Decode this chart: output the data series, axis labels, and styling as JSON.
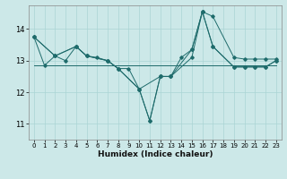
{
  "title": "",
  "xlabel": "Humidex (Indice chaleur)",
  "ylabel": "",
  "bg_color": "#cce8e8",
  "line_color": "#1e6b6b",
  "grid_color": "#aad4d4",
  "xlim": [
    -0.5,
    23.5
  ],
  "ylim": [
    10.5,
    14.75
  ],
  "yticks": [
    11,
    12,
    13,
    14
  ],
  "xticks": [
    0,
    1,
    2,
    3,
    4,
    5,
    6,
    7,
    8,
    9,
    10,
    11,
    12,
    13,
    14,
    15,
    16,
    17,
    18,
    19,
    20,
    21,
    22,
    23
  ],
  "series": [
    {
      "x": [
        0,
        23
      ],
      "y": [
        12.85,
        12.85
      ],
      "marker": false
    },
    {
      "x": [
        0,
        1,
        2,
        3,
        4,
        5,
        6,
        7,
        8,
        9,
        10,
        11,
        12,
        13,
        14,
        15,
        16,
        17,
        19,
        20,
        21,
        22,
        23
      ],
      "y": [
        13.75,
        12.85,
        13.15,
        13.0,
        13.45,
        13.15,
        13.1,
        13.0,
        12.75,
        12.75,
        12.1,
        11.1,
        12.5,
        12.5,
        13.1,
        13.35,
        14.55,
        13.45,
        12.8,
        12.8,
        12.8,
        12.8,
        13.0
      ],
      "marker": true
    },
    {
      "x": [
        0,
        2,
        4,
        5,
        7,
        8,
        10,
        11,
        12,
        13,
        15,
        16,
        17,
        19,
        20,
        21,
        22,
        23
      ],
      "y": [
        13.75,
        13.15,
        13.45,
        13.15,
        13.0,
        12.75,
        12.1,
        11.1,
        12.5,
        12.5,
        13.35,
        14.55,
        13.45,
        12.8,
        12.8,
        12.8,
        12.8,
        13.0
      ],
      "marker": true
    },
    {
      "x": [
        0,
        2,
        4,
        5,
        7,
        8,
        10,
        12,
        13,
        15,
        16,
        17,
        19,
        20,
        21,
        22,
        23
      ],
      "y": [
        13.75,
        13.15,
        13.45,
        13.15,
        13.0,
        12.75,
        12.1,
        12.5,
        12.5,
        13.1,
        14.55,
        14.4,
        13.1,
        13.05,
        13.05,
        13.05,
        13.05
      ],
      "marker": true
    }
  ]
}
